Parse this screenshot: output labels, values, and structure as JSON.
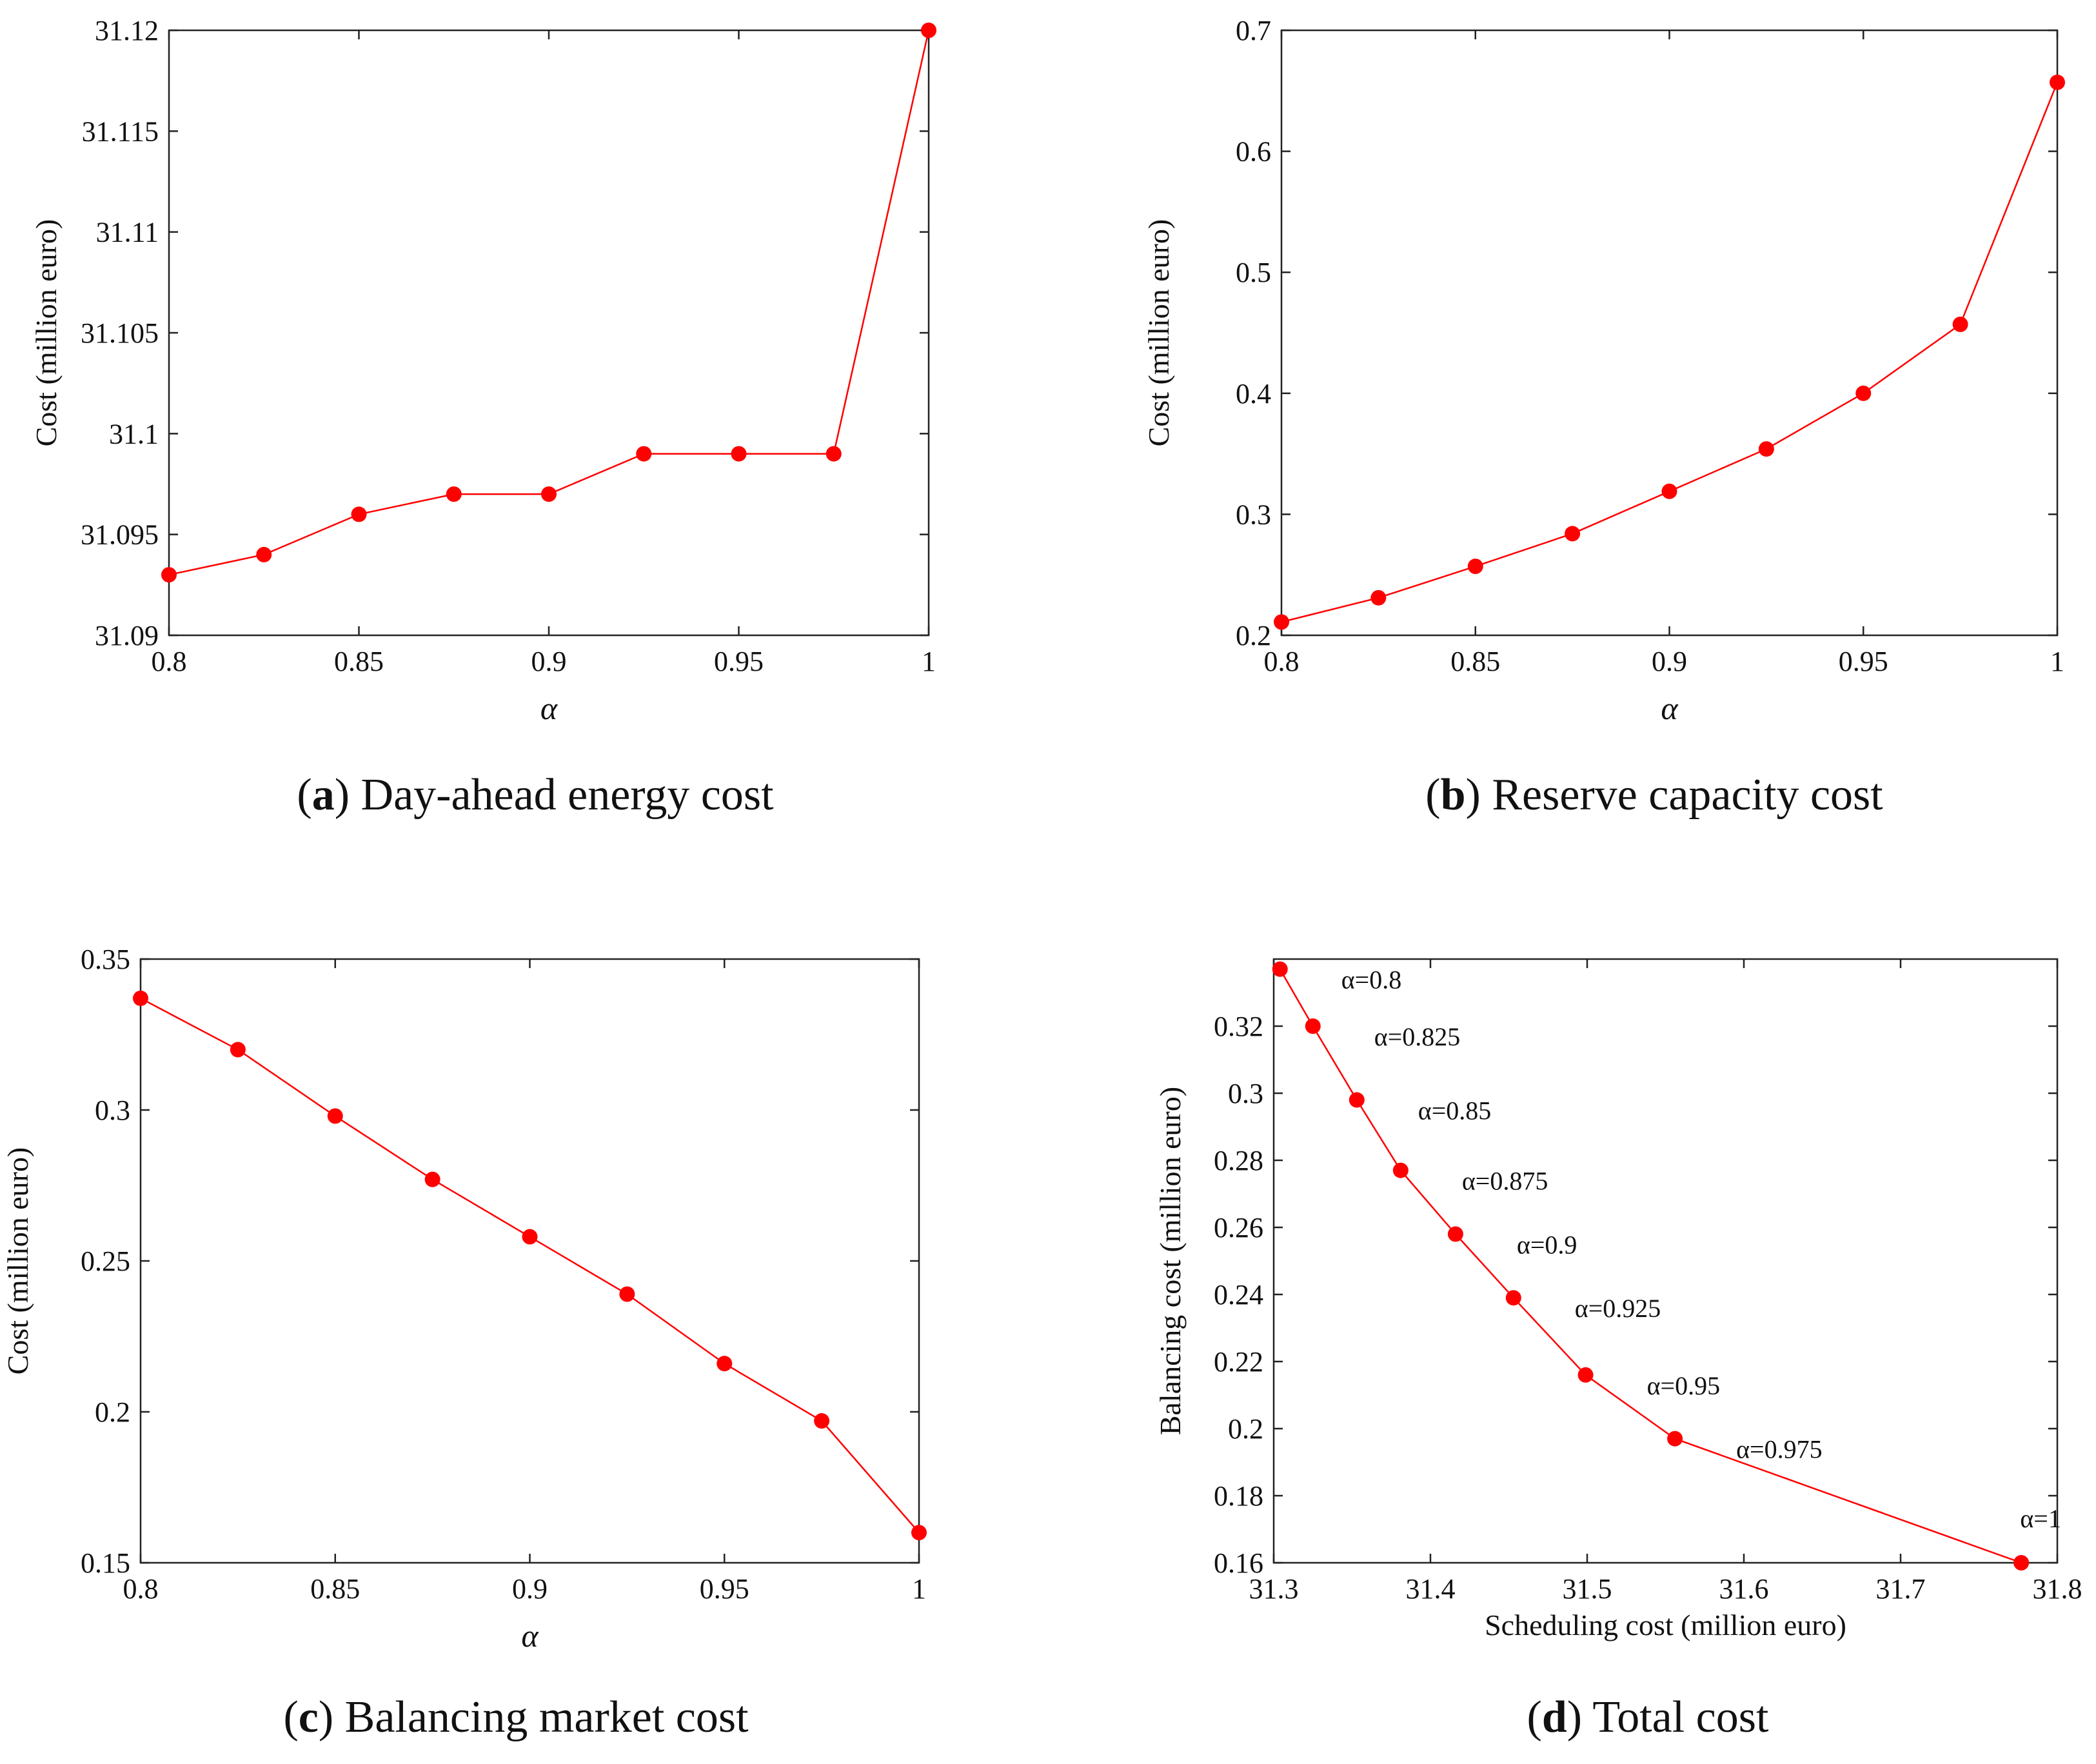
{
  "colors": {
    "series": "#ff0000",
    "axis": "#222222",
    "text": "#111111"
  },
  "panels": [
    {
      "letter": "a",
      "caption": "Day-ahead energy cost"
    },
    {
      "letter": "b",
      "caption": "Reserve capacity cost"
    },
    {
      "letter": "c",
      "caption": "Balancing market cost"
    },
    {
      "letter": "d",
      "caption": "Total cost"
    }
  ],
  "chart_data": [
    {
      "id": "a",
      "type": "line",
      "title": "Day-ahead energy cost",
      "xlabel": "α",
      "ylabel": "Cost (million euro)",
      "x": [
        0.8,
        0.825,
        0.85,
        0.875,
        0.9,
        0.925,
        0.95,
        0.975,
        1.0
      ],
      "y": [
        31.093,
        31.094,
        31.096,
        31.097,
        31.097,
        31.099,
        31.099,
        31.099,
        31.12
      ],
      "xlim": [
        0.8,
        1.0
      ],
      "ylim": [
        31.09,
        31.12
      ],
      "xticks": [
        0.8,
        0.85,
        0.9,
        0.95,
        1.0
      ],
      "xtick_labels": [
        "0.8",
        "0.85",
        "0.9",
        "0.95",
        "1"
      ],
      "yticks": [
        31.09,
        31.095,
        31.1,
        31.105,
        31.11,
        31.115,
        31.12
      ],
      "ytick_labels": [
        "31.09",
        "31.095",
        "31.1",
        "31.105",
        "31.11",
        "31.115",
        "31.12"
      ],
      "grid": false
    },
    {
      "id": "b",
      "type": "line",
      "title": "Reserve capacity cost",
      "xlabel": "α",
      "ylabel": "Cost (million euro)",
      "x": [
        0.8,
        0.825,
        0.85,
        0.875,
        0.9,
        0.925,
        0.95,
        0.975,
        1.0
      ],
      "y": [
        0.211,
        0.231,
        0.257,
        0.284,
        0.319,
        0.354,
        0.4,
        0.457,
        0.657
      ],
      "xlim": [
        0.8,
        1.0
      ],
      "ylim": [
        0.2,
        0.7
      ],
      "xticks": [
        0.8,
        0.85,
        0.9,
        0.95,
        1.0
      ],
      "xtick_labels": [
        "0.8",
        "0.85",
        "0.9",
        "0.95",
        "1"
      ],
      "yticks": [
        0.2,
        0.3,
        0.4,
        0.5,
        0.6,
        0.7
      ],
      "ytick_labels": [
        "0.2",
        "0.3",
        "0.4",
        "0.5",
        "0.6",
        "0.7"
      ],
      "grid": false
    },
    {
      "id": "c",
      "type": "line",
      "title": "Balancing market cost",
      "xlabel": "α",
      "ylabel": "Cost (million euro)",
      "x": [
        0.8,
        0.825,
        0.85,
        0.875,
        0.9,
        0.925,
        0.95,
        0.975,
        1.0
      ],
      "y": [
        0.337,
        0.32,
        0.298,
        0.277,
        0.258,
        0.239,
        0.216,
        0.197,
        0.16
      ],
      "xlim": [
        0.8,
        1.0
      ],
      "ylim": [
        0.15,
        0.35
      ],
      "xticks": [
        0.8,
        0.85,
        0.9,
        0.95,
        1.0
      ],
      "xtick_labels": [
        "0.8",
        "0.85",
        "0.9",
        "0.95",
        "1"
      ],
      "yticks": [
        0.15,
        0.2,
        0.25,
        0.3,
        0.35
      ],
      "ytick_labels": [
        "0.15",
        "0.2",
        "0.25",
        "0.3",
        "0.35"
      ],
      "grid": false
    },
    {
      "id": "d",
      "type": "line",
      "title": "Total cost",
      "xlabel": "Scheduling cost (million euro)",
      "ylabel": "Balancing cost (million euro)",
      "x": [
        31.304,
        31.325,
        31.353,
        31.381,
        31.416,
        31.453,
        31.499,
        31.556,
        31.777
      ],
      "y": [
        0.337,
        0.32,
        0.298,
        0.277,
        0.258,
        0.239,
        0.216,
        0.197,
        0.16
      ],
      "point_labels": [
        "α=0.8",
        "α=0.825",
        "α=0.85",
        "α=0.875",
        "α=0.9",
        "α=0.925",
        "α=0.95",
        "α=0.975",
        "α=1"
      ],
      "xlim": [
        31.3,
        31.8
      ],
      "ylim": [
        0.16,
        0.34
      ],
      "xticks": [
        31.3,
        31.4,
        31.5,
        31.6,
        31.7,
        31.8
      ],
      "xtick_labels": [
        "31.3",
        "31.4",
        "31.5",
        "31.6",
        "31.7",
        "31.8"
      ],
      "yticks": [
        0.16,
        0.18,
        0.2,
        0.22,
        0.24,
        0.26,
        0.28,
        0.3,
        0.32
      ],
      "ytick_labels": [
        "0.16",
        "0.18",
        "0.2",
        "0.22",
        "0.24",
        "0.26",
        "0.28",
        "0.3",
        "0.32"
      ],
      "grid": false
    }
  ]
}
